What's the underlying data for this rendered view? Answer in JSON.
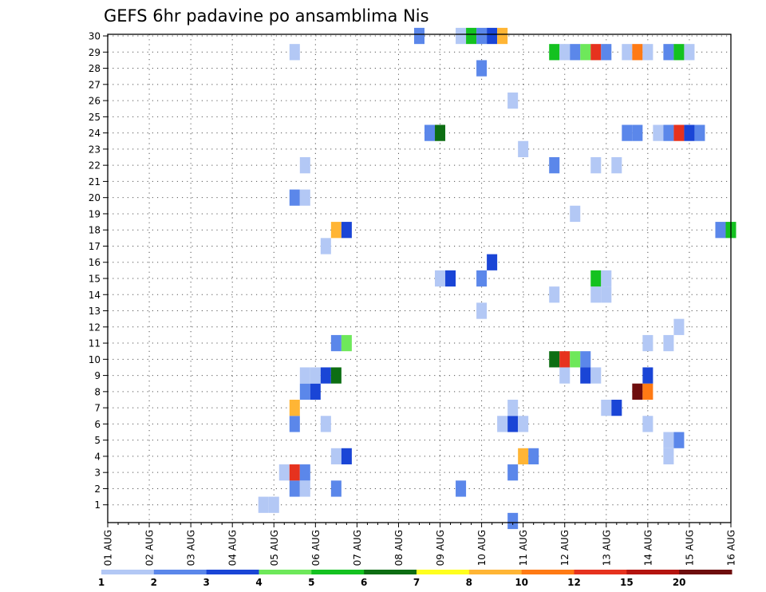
{
  "chart_data": {
    "type": "heatmap",
    "title": "GEFS 6hr padavine po ansamblima Nis",
    "xlabel": "",
    "ylabel": "",
    "x_tick_labels": [
      "01 AUG",
      "02 AUG",
      "03 AUG",
      "04 AUG",
      "05 AUG",
      "06 AUG",
      "07 AUG",
      "08 AUG",
      "09 AUG",
      "10 AUG",
      "11 AUG",
      "12 AUG",
      "13 AUG",
      "14 AUG",
      "15 AUG",
      "16 AUG"
    ],
    "y_tick_labels": [
      "1",
      "2",
      "3",
      "4",
      "5",
      "6",
      "7",
      "8",
      "9",
      "10",
      "11",
      "12",
      "13",
      "14",
      "15",
      "16",
      "17",
      "18",
      "19",
      "20",
      "21",
      "22",
      "23",
      "24",
      "25",
      "26",
      "27",
      "28",
      "29",
      "30"
    ],
    "x_unit": "6-hour step from 01 AUG 00Z",
    "xlim": [
      0,
      60
    ],
    "ylim": [
      0,
      30
    ],
    "grid": true,
    "colorbar": {
      "labels": [
        "1",
        "2",
        "3",
        "4",
        "5",
        "6",
        "7",
        "8",
        "10",
        "12",
        "15",
        "20"
      ],
      "colors": [
        "#b3c8f5",
        "#5b87ea",
        "#1a45d6",
        "#6ee85a",
        "#14c220",
        "#0d6e13",
        "#ffff1e",
        "#ffb535",
        "#ff7a14",
        "#e6321e",
        "#b4140f",
        "#6e0d0d"
      ]
    },
    "cells": [
      [
        15,
        1,
        0
      ],
      [
        16,
        1,
        0
      ],
      [
        18,
        2,
        1
      ],
      [
        19,
        2,
        0
      ],
      [
        22,
        2,
        1
      ],
      [
        34,
        2,
        1
      ],
      [
        17,
        3,
        0
      ],
      [
        18,
        3,
        9
      ],
      [
        19,
        3,
        1
      ],
      [
        39,
        3,
        1
      ],
      [
        22,
        4,
        0
      ],
      [
        23,
        4,
        2
      ],
      [
        40,
        4,
        7
      ],
      [
        41,
        4,
        1
      ],
      [
        54,
        4,
        0
      ],
      [
        54,
        5,
        0
      ],
      [
        55,
        5,
        1
      ],
      [
        18,
        6,
        1
      ],
      [
        21,
        6,
        0
      ],
      [
        38,
        6,
        0
      ],
      [
        39,
        6,
        2
      ],
      [
        40,
        6,
        0
      ],
      [
        52,
        6,
        0
      ],
      [
        18,
        7,
        7
      ],
      [
        39,
        7,
        0
      ],
      [
        48,
        7,
        0
      ],
      [
        49,
        7,
        2
      ],
      [
        19,
        8,
        1
      ],
      [
        20,
        8,
        2
      ],
      [
        51,
        8,
        11
      ],
      [
        52,
        8,
        8
      ],
      [
        19,
        9,
        0
      ],
      [
        20,
        9,
        0
      ],
      [
        21,
        9,
        2
      ],
      [
        22,
        9,
        5
      ],
      [
        44,
        9,
        0
      ],
      [
        46,
        9,
        2
      ],
      [
        47,
        9,
        0
      ],
      [
        52,
        9,
        2
      ],
      [
        43,
        10,
        5
      ],
      [
        44,
        10,
        9
      ],
      [
        45,
        10,
        3
      ],
      [
        46,
        10,
        1
      ],
      [
        22,
        11,
        1
      ],
      [
        23,
        11,
        3
      ],
      [
        52,
        11,
        0
      ],
      [
        54,
        11,
        0
      ],
      [
        55,
        12,
        0
      ],
      [
        36,
        13,
        0
      ],
      [
        43,
        14,
        0
      ],
      [
        47,
        14,
        0
      ],
      [
        48,
        14,
        0
      ],
      [
        32,
        15,
        0
      ],
      [
        33,
        15,
        2
      ],
      [
        36,
        15,
        1
      ],
      [
        47,
        15,
        4
      ],
      [
        48,
        15,
        0
      ],
      [
        37,
        16,
        2
      ],
      [
        21,
        17,
        0
      ],
      [
        22,
        18,
        7
      ],
      [
        23,
        18,
        2
      ],
      [
        59,
        18,
        1
      ],
      [
        60,
        18,
        4
      ],
      [
        45,
        19,
        0
      ],
      [
        18,
        20,
        1
      ],
      [
        19,
        20,
        0
      ],
      [
        19,
        22,
        0
      ],
      [
        43,
        22,
        1
      ],
      [
        47,
        22,
        0
      ],
      [
        49,
        22,
        0
      ],
      [
        40,
        23,
        0
      ],
      [
        31,
        24,
        1
      ],
      [
        32,
        24,
        5
      ],
      [
        50,
        24,
        1
      ],
      [
        51,
        24,
        1
      ],
      [
        53,
        24,
        0
      ],
      [
        54,
        24,
        1
      ],
      [
        55,
        24,
        9
      ],
      [
        56,
        24,
        2
      ],
      [
        57,
        24,
        1
      ],
      [
        39,
        26,
        0
      ],
      [
        36,
        28,
        1
      ],
      [
        18,
        29,
        0
      ],
      [
        43,
        29,
        4
      ],
      [
        44,
        29,
        0
      ],
      [
        45,
        29,
        1
      ],
      [
        46,
        29,
        3
      ],
      [
        47,
        29,
        9
      ],
      [
        48,
        29,
        1
      ],
      [
        50,
        29,
        0
      ],
      [
        51,
        29,
        8
      ],
      [
        52,
        29,
        0
      ],
      [
        54,
        29,
        1
      ],
      [
        55,
        29,
        4
      ],
      [
        56,
        29,
        0
      ],
      [
        30,
        30,
        1
      ],
      [
        34,
        30,
        0
      ],
      [
        35,
        30,
        4
      ],
      [
        36,
        30,
        1
      ],
      [
        37,
        30,
        2
      ],
      [
        38,
        30,
        7
      ],
      [
        39,
        0,
        1
      ]
    ]
  }
}
